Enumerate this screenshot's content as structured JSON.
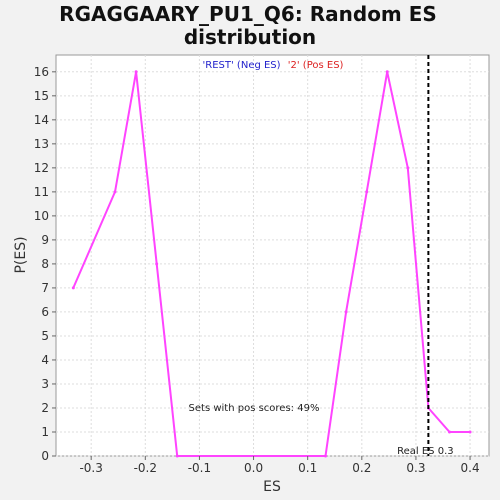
{
  "chart_data": {
    "type": "line",
    "title_line1": "RGAGGAARY_PU1_Q6: Random ES",
    "title_line2": "distribution",
    "xlabel": "ES",
    "ylabel": "P(ES)",
    "xlim": [
      -0.365,
      0.435
    ],
    "ylim": [
      0,
      16.7
    ],
    "xticks": [
      -0.3,
      -0.2,
      -0.1,
      0.0,
      0.1,
      0.2,
      0.3,
      0.4
    ],
    "xtick_labels": [
      "-0.3",
      "-0.2",
      "-0.1",
      "0.0",
      "0.1",
      "0.2",
      "0.3",
      "0.4"
    ],
    "yticks": [
      0,
      1,
      2,
      3,
      4,
      5,
      6,
      7,
      8,
      9,
      10,
      11,
      12,
      13,
      14,
      15,
      16
    ],
    "ytick_labels": [
      "0",
      "1",
      "2",
      "3",
      "4",
      "5",
      "6",
      "7",
      "8",
      "9",
      "10",
      "11",
      "12",
      "13",
      "14",
      "15",
      "16"
    ],
    "grid": true,
    "legend": {
      "placement": "top-center",
      "entries": [
        {
          "label": "'REST' (Neg ES)",
          "color": "#2222cc"
        },
        {
          "label": "'2' (Pos ES)",
          "color": "#dd2222"
        }
      ]
    },
    "series": [
      {
        "color": "#ff44ff",
        "x": [
          -0.333,
          -0.256,
          -0.217,
          -0.179,
          -0.141,
          0.133,
          0.171,
          0.209,
          0.247,
          0.285,
          0.323,
          0.362,
          0.4
        ],
        "y": [
          7,
          11,
          16,
          8,
          0,
          0,
          6,
          11,
          16,
          12,
          2,
          1,
          1
        ]
      }
    ],
    "real_es": {
      "value": 0.323,
      "label": "Real ES 0.3",
      "color": "#000000"
    },
    "annotation": "Sets with pos scores: 49%"
  }
}
